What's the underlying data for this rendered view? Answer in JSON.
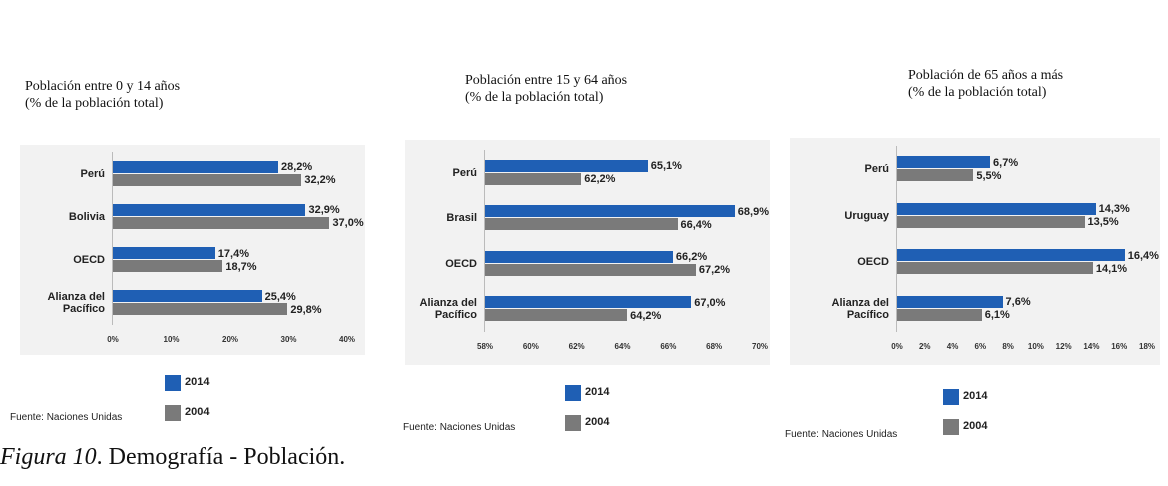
{
  "chart_data": [
    {
      "type": "bar",
      "orientation": "horizontal",
      "title": "Población entre 0 y 14 años",
      "subtitle": "(% de la población total)",
      "categories": [
        "Perú",
        "Bolivia",
        "OECD",
        "Alianza del Pacífico"
      ],
      "series": [
        {
          "name": "2014",
          "color": "#1f5fb4",
          "values": [
            28.2,
            32.9,
            17.4,
            25.4
          ],
          "value_labels": [
            "28,2%",
            "32,9%",
            "17,4%",
            "25,4%"
          ]
        },
        {
          "name": "2004",
          "color": "#7a7a7a",
          "values": [
            32.2,
            37.0,
            18.7,
            29.8
          ],
          "value_labels": [
            "32,2%",
            "37,0%",
            "18,7%",
            "29,8%"
          ]
        }
      ],
      "xlim": [
        0,
        40
      ],
      "xticks": [
        {
          "value": 0,
          "label": "0%"
        },
        {
          "value": 10,
          "label": "10%"
        },
        {
          "value": 20,
          "label": "20%"
        },
        {
          "value": 30,
          "label": "30%"
        },
        {
          "value": 40,
          "label": "40%"
        }
      ],
      "source": "Fuente:  Naciones Unidas"
    },
    {
      "type": "bar",
      "orientation": "horizontal",
      "title": "Población entre 15 y 64 años",
      "subtitle": "(% de la población total)",
      "categories": [
        "Perú",
        "Brasil",
        "OECD",
        "Alianza del Pacífico"
      ],
      "series": [
        {
          "name": "2014",
          "color": "#1f5fb4",
          "values": [
            65.1,
            68.9,
            66.2,
            67.0
          ],
          "value_labels": [
            "65,1%",
            "68,9%",
            "66,2%",
            "67,0%"
          ]
        },
        {
          "name": "2004",
          "color": "#7a7a7a",
          "values": [
            62.2,
            66.4,
            67.2,
            64.2
          ],
          "value_labels": [
            "62,2%",
            "66,4%",
            "67,2%",
            "64,2%"
          ]
        }
      ],
      "xlim": [
        58,
        70
      ],
      "xticks": [
        {
          "value": 58,
          "label": "58%"
        },
        {
          "value": 60,
          "label": "60%"
        },
        {
          "value": 62,
          "label": "62%"
        },
        {
          "value": 64,
          "label": "64%"
        },
        {
          "value": 66,
          "label": "66%"
        },
        {
          "value": 68,
          "label": "68%"
        },
        {
          "value": 70,
          "label": "70%"
        }
      ],
      "source": "Fuente:  Naciones Unidas"
    },
    {
      "type": "bar",
      "orientation": "horizontal",
      "title": "Población de 65 años a más",
      "subtitle": "(% de la población total)",
      "categories": [
        "Perú",
        "Uruguay",
        "OECD",
        "Alianza del Pacífico"
      ],
      "series": [
        {
          "name": "2014",
          "color": "#1f5fb4",
          "values": [
            6.7,
            14.3,
            16.4,
            7.6
          ],
          "value_labels": [
            "6,7%",
            "14,3%",
            "16,4%",
            "7,6%"
          ]
        },
        {
          "name": "2004",
          "color": "#7a7a7a",
          "values": [
            5.5,
            13.5,
            14.1,
            6.1
          ],
          "value_labels": [
            "5,5%",
            "13,5%",
            "14,1%",
            "6,1%"
          ]
        }
      ],
      "xlim": [
        0,
        18
      ],
      "xticks": [
        {
          "value": 0,
          "label": "0%"
        },
        {
          "value": 2,
          "label": "2%"
        },
        {
          "value": 4,
          "label": "4%"
        },
        {
          "value": 6,
          "label": "6%"
        },
        {
          "value": 8,
          "label": "8%"
        },
        {
          "value": 10,
          "label": "10%"
        },
        {
          "value": 12,
          "label": "12%"
        },
        {
          "value": 14,
          "label": "14%"
        },
        {
          "value": 16,
          "label": "16%"
        },
        {
          "value": 18,
          "label": "18%"
        }
      ],
      "source": "Fuente:  Naciones Unidas"
    }
  ],
  "caption_label": "Figura 10",
  "caption_text": ". Demografía - Población."
}
